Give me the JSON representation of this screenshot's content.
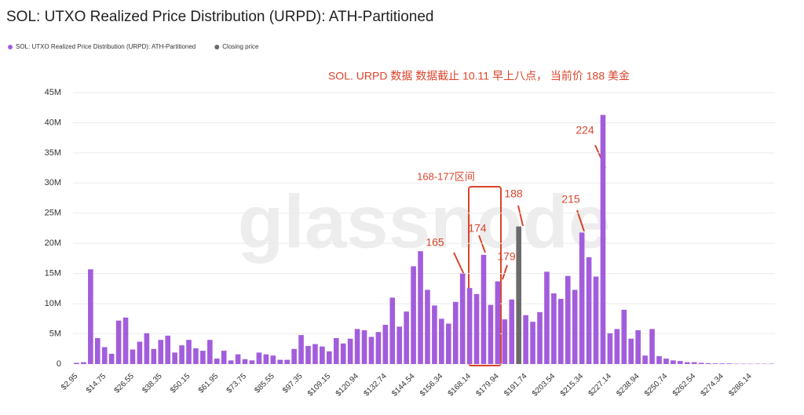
{
  "chart_data": {
    "type": "bar",
    "title": "SOL: UTXO Realized Price Distribution (URPD): ATH-Partitioned",
    "watermark": "glassnode",
    "annotations": [
      "SOL. URPD 数据 数据截止 10.11 早上八点， 当前价 188 美金",
      "168-177区间",
      "188",
      "165",
      "174",
      "179",
      "215",
      "224"
    ],
    "categories": [
      "$2.95",
      null,
      null,
      null,
      "$14.75",
      null,
      null,
      null,
      "$26.55",
      null,
      null,
      null,
      "$38.35",
      null,
      null,
      null,
      "$50.15",
      null,
      null,
      null,
      "$61.95",
      null,
      null,
      null,
      "$73.75",
      null,
      null,
      null,
      "$85.55",
      null,
      null,
      null,
      "$97.35",
      null,
      null,
      null,
      "$109.15",
      null,
      null,
      null,
      "$120.94",
      null,
      null,
      null,
      "$132.74",
      null,
      null,
      null,
      "$144.54",
      null,
      null,
      null,
      "$156.34",
      null,
      null,
      null,
      "$168.14",
      null,
      null,
      null,
      "$179.94",
      null,
      null,
      null,
      "$191.74",
      null,
      null,
      null,
      "$203.54",
      null,
      null,
      null,
      "$215.34",
      null,
      null,
      null,
      "$227.14",
      null,
      null,
      null,
      "$238.94",
      null,
      null,
      null,
      "$250.74",
      null,
      null,
      null,
      "$262.54",
      null,
      null,
      null,
      "$274.34",
      null,
      null,
      null,
      "$286.14",
      null,
      null,
      null
    ],
    "series": [
      {
        "name": "SOL: UTXO Realized Price Distribution (URPD): ATH-Partitioned",
        "color": "#a25ddc",
        "values": [
          0.2,
          0.3,
          15.7,
          4.3,
          2.8,
          1.7,
          7.2,
          7.7,
          2.4,
          3.7,
          5.1,
          2.5,
          4.0,
          4.7,
          1.9,
          3.1,
          4.0,
          2.6,
          2.2,
          4.0,
          0.9,
          2.2,
          0.6,
          1.6,
          0.8,
          0.6,
          1.9,
          1.6,
          1.4,
          0.7,
          0.7,
          2.5,
          4.8,
          3.0,
          3.3,
          2.9,
          2.1,
          4.3,
          3.4,
          4.2,
          5.8,
          5.6,
          4.5,
          5.3,
          6.5,
          11.0,
          6.2,
          8.7,
          16.2,
          18.7,
          12.3,
          9.7,
          7.5,
          6.7,
          10.3,
          15.0,
          12.6,
          11.6,
          18.1,
          9.8,
          13.7,
          7.4,
          10.7,
          null,
          8.1,
          7.0,
          8.6,
          15.3,
          11.7,
          10.8,
          14.6,
          12.3,
          21.8,
          17.7,
          14.5,
          41.3,
          5.1,
          5.8,
          9.0,
          4.2,
          5.6,
          1.4,
          5.8,
          1.3,
          0.9,
          0.6,
          0.5,
          0.3,
          0.3,
          0.2,
          0.15,
          0.1,
          0.1,
          0.1,
          0.05,
          0.05,
          0.05,
          0.05,
          0.05,
          0.05
        ]
      },
      {
        "name": "Closing price",
        "color": "#6b6b6b",
        "values": [
          null,
          null,
          null,
          null,
          null,
          null,
          null,
          null,
          null,
          null,
          null,
          null,
          null,
          null,
          null,
          null,
          null,
          null,
          null,
          null,
          null,
          null,
          null,
          null,
          null,
          null,
          null,
          null,
          null,
          null,
          null,
          null,
          null,
          null,
          null,
          null,
          null,
          null,
          null,
          null,
          null,
          null,
          null,
          null,
          null,
          null,
          null,
          null,
          null,
          null,
          null,
          null,
          null,
          null,
          null,
          null,
          null,
          null,
          null,
          null,
          null,
          null,
          null,
          22.8,
          null,
          null,
          null,
          null,
          null,
          null,
          null,
          null,
          null,
          null,
          null,
          null,
          null,
          null,
          null,
          null,
          null,
          null,
          null,
          null,
          null,
          null,
          null,
          null,
          null,
          null,
          null,
          null,
          null,
          null,
          null,
          null,
          null,
          null,
          null,
          null
        ]
      }
    ],
    "ylim": [
      0,
      45
    ],
    "yticks": [
      0,
      {
        "value": 5,
        "label": "5M"
      },
      {
        "value": 10,
        "label": "10M"
      },
      {
        "value": 15,
        "label": "15M"
      },
      {
        "value": 20,
        "label": "20M"
      },
      {
        "value": 25,
        "label": "25M"
      },
      {
        "value": 30,
        "label": "30M"
      },
      {
        "value": 35,
        "label": "35M"
      },
      {
        "value": 40,
        "label": "40M"
      },
      {
        "value": 45,
        "label": "45M"
      }
    ],
    "grid": true
  }
}
